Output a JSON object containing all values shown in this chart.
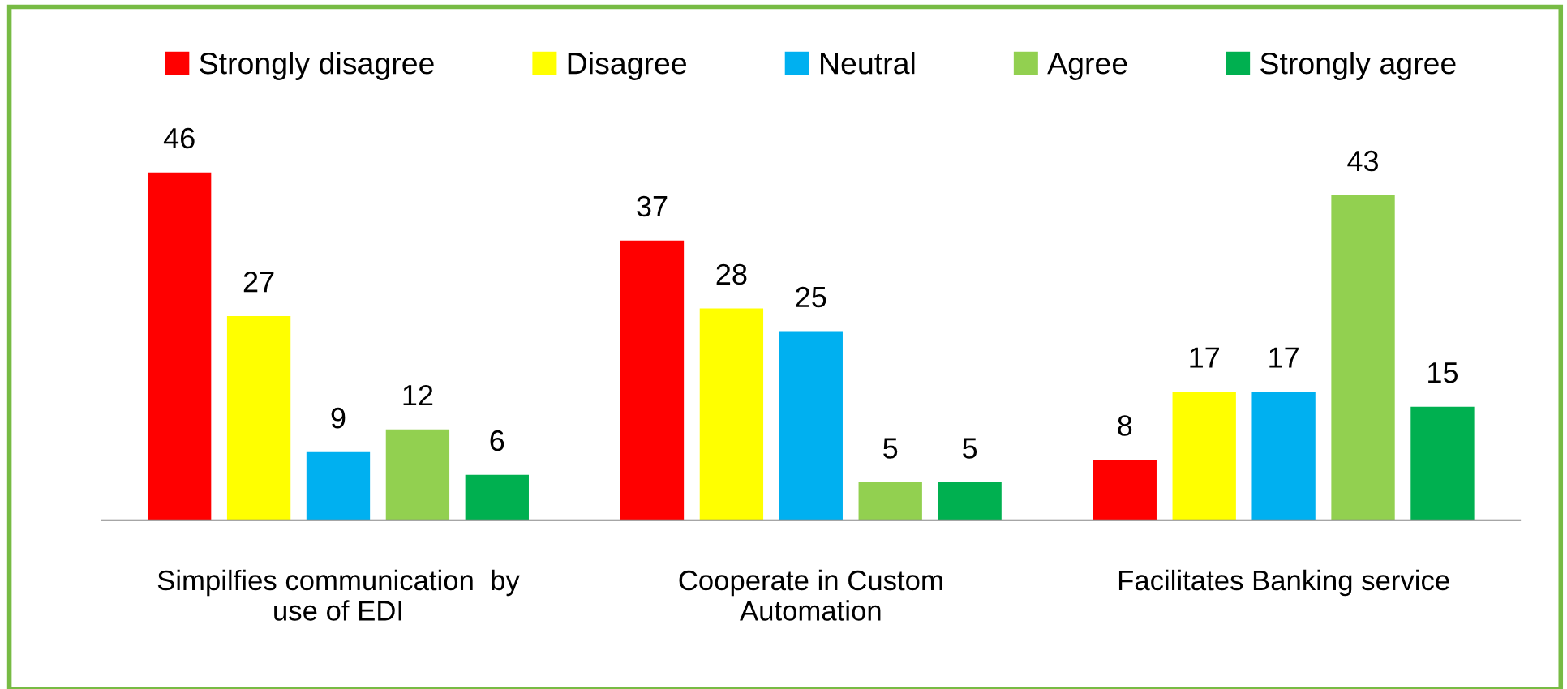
{
  "chart_data": {
    "type": "bar",
    "categories": [
      "Simpilfies communication  by\nuse of EDI",
      "Cooperate in Custom\nAutomation",
      "Facilitates Banking service"
    ],
    "series": [
      {
        "name": "Strongly disagree",
        "color": "#ff0000",
        "values": [
          46,
          37,
          8
        ]
      },
      {
        "name": "Disagree",
        "color": "#ffff00",
        "values": [
          27,
          28,
          17
        ]
      },
      {
        "name": "Neutral",
        "color": "#00b0f0",
        "values": [
          9,
          25,
          17
        ]
      },
      {
        "name": "Agree",
        "color": "#92d050",
        "values": [
          12,
          5,
          43
        ]
      },
      {
        "name": "Strongly agree",
        "color": "#00b050",
        "values": [
          6,
          5,
          15
        ]
      }
    ],
    "data_labels": true,
    "legend": "top",
    "grid": false
  }
}
